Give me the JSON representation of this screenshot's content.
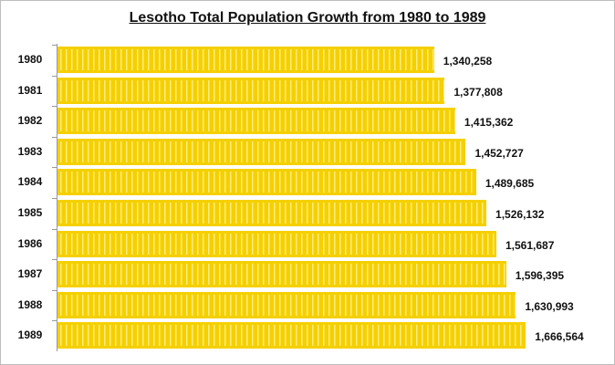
{
  "chart_data": {
    "type": "bar",
    "orientation": "horizontal",
    "title": "Lesotho Total Population Growth from 1980 to 1989",
    "categories": [
      "1980",
      "1981",
      "1982",
      "1983",
      "1984",
      "1985",
      "1986",
      "1987",
      "1988",
      "1989"
    ],
    "values": [
      1340258,
      1377808,
      1415362,
      1452727,
      1489685,
      1526132,
      1561687,
      1596395,
      1630993,
      1666564
    ],
    "value_labels": [
      "1,340,258",
      "1,377,808",
      "1,415,362",
      "1,452,727",
      "1,489,685",
      "1,526,132",
      "1,561,687",
      "1,596,395",
      "1,630,993",
      "1,666,564"
    ],
    "xlim": [
      0,
      2000000
    ],
    "grid": false,
    "bar_color": "#f5d000",
    "xlabel": "",
    "ylabel": ""
  }
}
